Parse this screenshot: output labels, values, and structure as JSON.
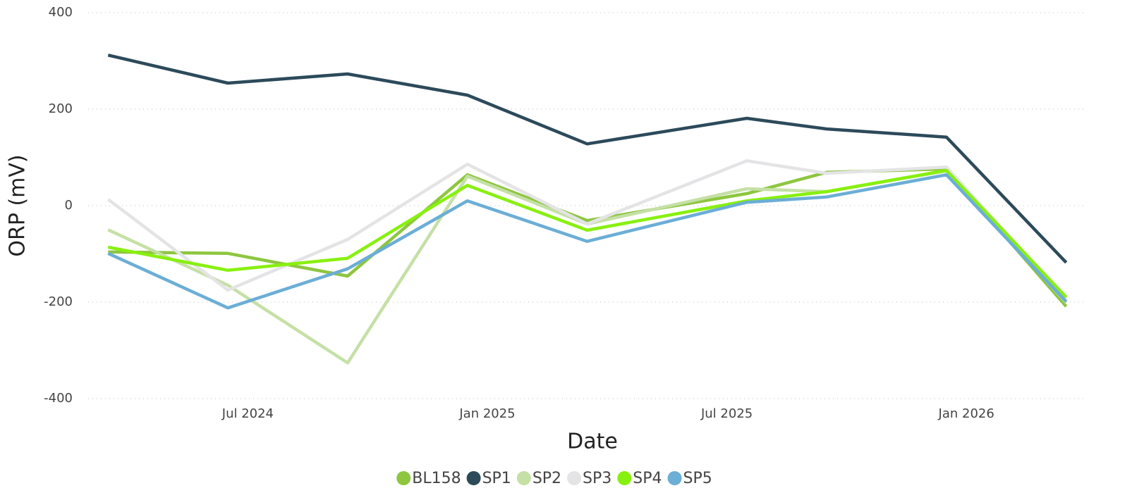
{
  "chart_data": {
    "type": "line",
    "x_label": "Date",
    "y_label": "ORP (mV)",
    "x": [
      "2024-03",
      "2024-06",
      "2024-09",
      "2024-12",
      "2025-03",
      "2025-07",
      "2025-09",
      "2025-12",
      "2026-03"
    ],
    "xlim": [
      "2024-03",
      "2026-03"
    ],
    "xticks": [
      {
        "value": "2024-07",
        "label": "Jul 2024"
      },
      {
        "value": "2025-01",
        "label": "Jan 2025"
      },
      {
        "value": "2025-07",
        "label": "Jul 2025"
      },
      {
        "value": "2026-01",
        "label": "Jan 2026"
      }
    ],
    "ylim": [
      -400,
      400
    ],
    "yticks": [
      -400,
      -200,
      0,
      200,
      400
    ],
    "grid": true,
    "legend": "bottom",
    "series": [
      {
        "name": "BL158",
        "color": "#8dc63f",
        "values": [
          -96,
          -99,
          -146,
          64,
          -31,
          25,
          69,
          76,
          -209
        ]
      },
      {
        "name": "SP1",
        "color": "#2c4a5a",
        "values": [
          312,
          254,
          273,
          229,
          128,
          181,
          159,
          142,
          -118
        ]
      },
      {
        "name": "SP2",
        "color": "#c5e0a5",
        "values": [
          -50,
          -165,
          -326,
          61,
          -38,
          35,
          29,
          72,
          -201
        ]
      },
      {
        "name": "SP3",
        "color": "#e4e4e6",
        "values": [
          13,
          -175,
          -70,
          86,
          -38,
          93,
          67,
          80,
          -194
        ]
      },
      {
        "name": "SP4",
        "color": "#88f00f",
        "values": [
          -86,
          -134,
          -109,
          42,
          -51,
          10,
          29,
          73,
          -190
        ]
      },
      {
        "name": "SP5",
        "color": "#6baed6",
        "values": [
          -99,
          -212,
          -131,
          10,
          -74,
          7,
          18,
          64,
          -199
        ]
      }
    ]
  }
}
